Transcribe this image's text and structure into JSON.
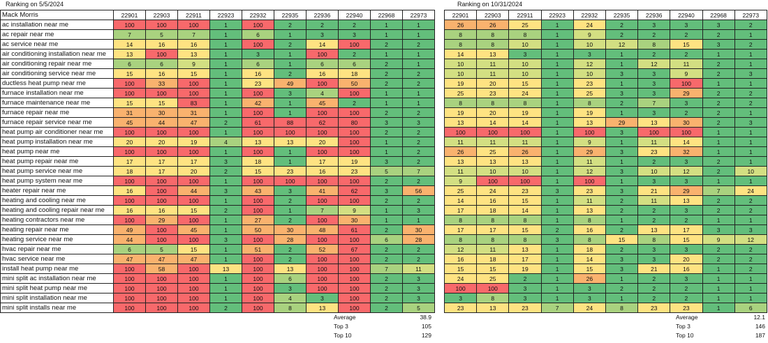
{
  "left": {
    "caption": "Ranking on 5/5/2024",
    "client": "Mack Morris",
    "zips": [
      "22901",
      "22903",
      "22911",
      "22923",
      "22932",
      "22935",
      "22936",
      "22940",
      "22968",
      "22973"
    ],
    "rows": [
      {
        "keyword": "ac installation near me",
        "values": [
          100,
          100,
          100,
          1,
          100,
          2,
          2,
          2,
          1,
          1
        ]
      },
      {
        "keyword": "ac repair near me",
        "values": [
          7,
          5,
          7,
          1,
          6,
          1,
          3,
          3,
          1,
          1
        ]
      },
      {
        "keyword": "ac service near me",
        "values": [
          14,
          16,
          16,
          1,
          100,
          2,
          14,
          100,
          2,
          2
        ]
      },
      {
        "keyword": "air conditioning installation near me",
        "values": [
          13,
          100,
          13,
          1,
          3,
          1,
          100,
          2,
          1,
          1
        ]
      },
      {
        "keyword": "air conditioning repair near me",
        "values": [
          6,
          6,
          9,
          1,
          6,
          1,
          6,
          6,
          2,
          1
        ]
      },
      {
        "keyword": "air conditioning service near me",
        "values": [
          15,
          16,
          15,
          1,
          16,
          2,
          16,
          18,
          2,
          2
        ]
      },
      {
        "keyword": "ductless heat pump near me",
        "values": [
          100,
          33,
          100,
          1,
          23,
          49,
          100,
          50,
          2,
          2
        ]
      },
      {
        "keyword": "furnace installation near me",
        "values": [
          100,
          100,
          100,
          1,
          100,
          3,
          4,
          100,
          1,
          1
        ]
      },
      {
        "keyword": "furnace maintenance near me",
        "values": [
          15,
          15,
          83,
          1,
          42,
          1,
          45,
          2,
          1,
          1
        ]
      },
      {
        "keyword": "furnace repair near me",
        "values": [
          31,
          30,
          31,
          1,
          100,
          1,
          100,
          100,
          2,
          2
        ]
      },
      {
        "keyword": "furnace repair service near me",
        "values": [
          45,
          44,
          47,
          2,
          61,
          88,
          62,
          80,
          3,
          3
        ]
      },
      {
        "keyword": "heat pump air conditioner near me",
        "values": [
          100,
          100,
          100,
          1,
          100,
          100,
          100,
          100,
          2,
          2
        ]
      },
      {
        "keyword": "heat pump installation near me",
        "values": [
          20,
          20,
          19,
          4,
          13,
          13,
          20,
          100,
          1,
          2
        ]
      },
      {
        "keyword": "heat pump near me",
        "values": [
          100,
          100,
          100,
          1,
          100,
          1,
          100,
          100,
          1,
          2
        ]
      },
      {
        "keyword": "heat pump repair near me",
        "values": [
          17,
          17,
          17,
          3,
          18,
          1,
          17,
          19,
          3,
          2
        ]
      },
      {
        "keyword": "heat pump service near me",
        "values": [
          18,
          17,
          20,
          2,
          15,
          23,
          16,
          23,
          5,
          7
        ]
      },
      {
        "keyword": "heat pump system near me",
        "values": [
          100,
          100,
          100,
          1,
          100,
          100,
          100,
          100,
          2,
          2
        ]
      },
      {
        "keyword": "heater repair near me",
        "values": [
          16,
          100,
          44,
          3,
          43,
          3,
          41,
          62,
          3,
          56
        ]
      },
      {
        "keyword": "heating and cooling near me",
        "values": [
          100,
          100,
          100,
          1,
          100,
          2,
          100,
          100,
          2,
          2
        ]
      },
      {
        "keyword": "heating and cooling repair near me",
        "values": [
          16,
          16,
          15,
          2,
          100,
          1,
          7,
          9,
          1,
          3
        ]
      },
      {
        "keyword": "heating contractors near me",
        "values": [
          100,
          29,
          100,
          1,
          27,
          2,
          100,
          30,
          1,
          1
        ]
      },
      {
        "keyword": "heating repair near me",
        "values": [
          49,
          100,
          45,
          1,
          50,
          30,
          48,
          61,
          2,
          30
        ]
      },
      {
        "keyword": "heating service near me",
        "values": [
          44,
          100,
          100,
          3,
          100,
          28,
          100,
          100,
          6,
          28
        ]
      },
      {
        "keyword": "hvac repair near me",
        "values": [
          6,
          5,
          15,
          1,
          51,
          2,
          52,
          67,
          2,
          2
        ]
      },
      {
        "keyword": "hvac service near me",
        "values": [
          47,
          47,
          47,
          1,
          100,
          2,
          100,
          100,
          2,
          2
        ]
      },
      {
        "keyword": "install heat pump near me",
        "values": [
          100,
          58,
          100,
          13,
          100,
          13,
          100,
          100,
          7,
          11
        ]
      },
      {
        "keyword": "mini split ac installation near me",
        "values": [
          100,
          100,
          100,
          1,
          100,
          6,
          100,
          100,
          2,
          3
        ]
      },
      {
        "keyword": "mini split heat pump near me",
        "values": [
          100,
          100,
          100,
          1,
          100,
          3,
          100,
          100,
          2,
          3
        ]
      },
      {
        "keyword": "mini split installation near me",
        "values": [
          100,
          100,
          100,
          1,
          100,
          4,
          3,
          100,
          2,
          3
        ]
      },
      {
        "keyword": "mini split installs near me",
        "values": [
          100,
          100,
          100,
          2,
          100,
          8,
          13,
          100,
          2,
          5
        ]
      }
    ],
    "summary": [
      {
        "label": "Average",
        "value": "38.9"
      },
      {
        "label": "Top 3",
        "value": "105"
      },
      {
        "label": "Top 10",
        "value": "129"
      }
    ]
  },
  "right": {
    "caption": "Ranking on 10/31/2024",
    "zips": [
      "22901",
      "22903",
      "22911",
      "22923",
      "22932",
      "22935",
      "22936",
      "22940",
      "22968",
      "22973"
    ],
    "rows": [
      [
        26,
        26,
        25,
        1,
        24,
        2,
        3,
        3,
        3,
        2
      ],
      [
        8,
        8,
        8,
        1,
        9,
        2,
        2,
        2,
        2,
        1
      ],
      [
        8,
        8,
        10,
        1,
        10,
        12,
        8,
        15,
        3,
        2
      ],
      [
        14,
        13,
        3,
        1,
        3,
        1,
        2,
        2,
        1,
        1
      ],
      [
        10,
        11,
        10,
        1,
        12,
        1,
        12,
        11,
        2,
        1
      ],
      [
        10,
        11,
        10,
        1,
        10,
        3,
        3,
        9,
        2,
        3
      ],
      [
        19,
        20,
        15,
        1,
        23,
        1,
        3,
        100,
        1,
        1
      ],
      [
        25,
        23,
        24,
        1,
        25,
        3,
        3,
        29,
        2,
        2
      ],
      [
        8,
        8,
        8,
        1,
        8,
        2,
        7,
        3,
        2,
        2
      ],
      [
        19,
        20,
        19,
        1,
        19,
        1,
        3,
        2,
        2,
        1
      ],
      [
        13,
        14,
        14,
        1,
        13,
        29,
        13,
        30,
        2,
        3
      ],
      [
        100,
        100,
        100,
        1,
        100,
        3,
        100,
        100,
        1,
        1
      ],
      [
        11,
        11,
        11,
        1,
        9,
        1,
        11,
        14,
        1,
        1
      ],
      [
        26,
        25,
        26,
        1,
        29,
        3,
        23,
        32,
        1,
        1
      ],
      [
        13,
        13,
        13,
        1,
        11,
        1,
        2,
        3,
        2,
        1
      ],
      [
        11,
        10,
        10,
        1,
        12,
        3,
        10,
        12,
        2,
        10
      ],
      [
        9,
        100,
        100,
        1,
        100,
        1,
        3,
        3,
        1,
        1
      ],
      [
        25,
        24,
        23,
        3,
        23,
        3,
        21,
        29,
        7,
        24
      ],
      [
        14,
        16,
        15,
        1,
        11,
        2,
        11,
        13,
        2,
        2
      ],
      [
        17,
        18,
        14,
        1,
        13,
        2,
        2,
        3,
        2,
        2
      ],
      [
        8,
        8,
        8,
        1,
        8,
        1,
        2,
        2,
        1,
        1
      ],
      [
        17,
        17,
        15,
        2,
        16,
        2,
        13,
        17,
        3,
        3
      ],
      [
        8,
        8,
        8,
        3,
        8,
        15,
        8,
        15,
        9,
        12
      ],
      [
        12,
        11,
        13,
        1,
        18,
        2,
        3,
        3,
        2,
        2
      ],
      [
        16,
        18,
        17,
        1,
        14,
        3,
        3,
        20,
        2,
        2
      ],
      [
        15,
        15,
        19,
        1,
        15,
        3,
        21,
        16,
        1,
        2
      ],
      [
        24,
        25,
        2,
        1,
        26,
        1,
        2,
        3,
        1,
        1
      ],
      [
        100,
        100,
        3,
        1,
        3,
        2,
        2,
        2,
        1,
        1
      ],
      [
        3,
        8,
        3,
        1,
        3,
        1,
        2,
        2,
        1,
        1
      ],
      [
        23,
        13,
        23,
        7,
        24,
        8,
        23,
        23,
        1,
        6
      ]
    ],
    "summary": [
      {
        "label": "Average",
        "value": "12.1"
      },
      {
        "label": "Top 3",
        "value": "146"
      },
      {
        "label": "Top 10",
        "value": "187"
      }
    ]
  },
  "colors": {
    "green": "#63be7b",
    "light_green": "#a9d27f",
    "yellow_green": "#d3df82",
    "yellow": "#fee382",
    "orange": "#f9b26e",
    "red": "#f8696b"
  }
}
